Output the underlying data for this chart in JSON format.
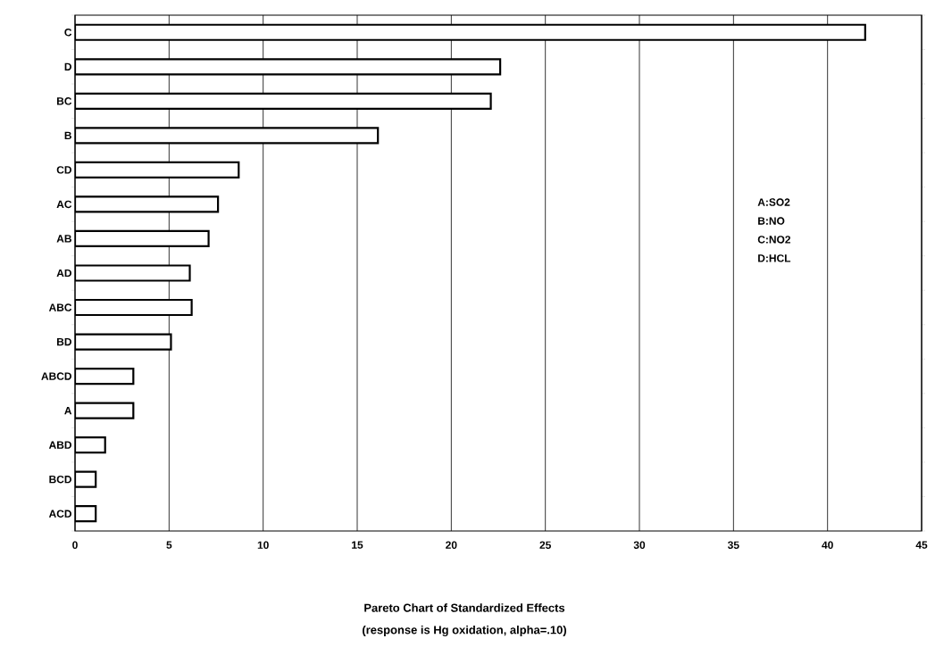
{
  "chart_data": {
    "type": "bar",
    "orientation": "horizontal",
    "title": "Pareto Chart of Standardized Effects",
    "subtitle": "(response is Hg oxidation, alpha=.10)",
    "categories": [
      "C",
      "D",
      "BC",
      "B",
      "CD",
      "AC",
      "AB",
      "AD",
      "ABC",
      "BD",
      "ABCD",
      "A",
      "ABD",
      "BCD",
      "ACD"
    ],
    "values": [
      42,
      22.6,
      22.1,
      16.1,
      8.7,
      7.6,
      7.1,
      6.1,
      6.2,
      5.1,
      3.1,
      3.1,
      1.6,
      1.1,
      1.1
    ],
    "color": "#ffffff",
    "xlim": [
      0,
      45
    ],
    "xticks": [
      0,
      5,
      10,
      15,
      20,
      25,
      30,
      35,
      40,
      45
    ],
    "grid": "x",
    "annotations": [
      "A:SO2",
      "B:NO",
      "C:NO2",
      "D:HCL"
    ]
  }
}
